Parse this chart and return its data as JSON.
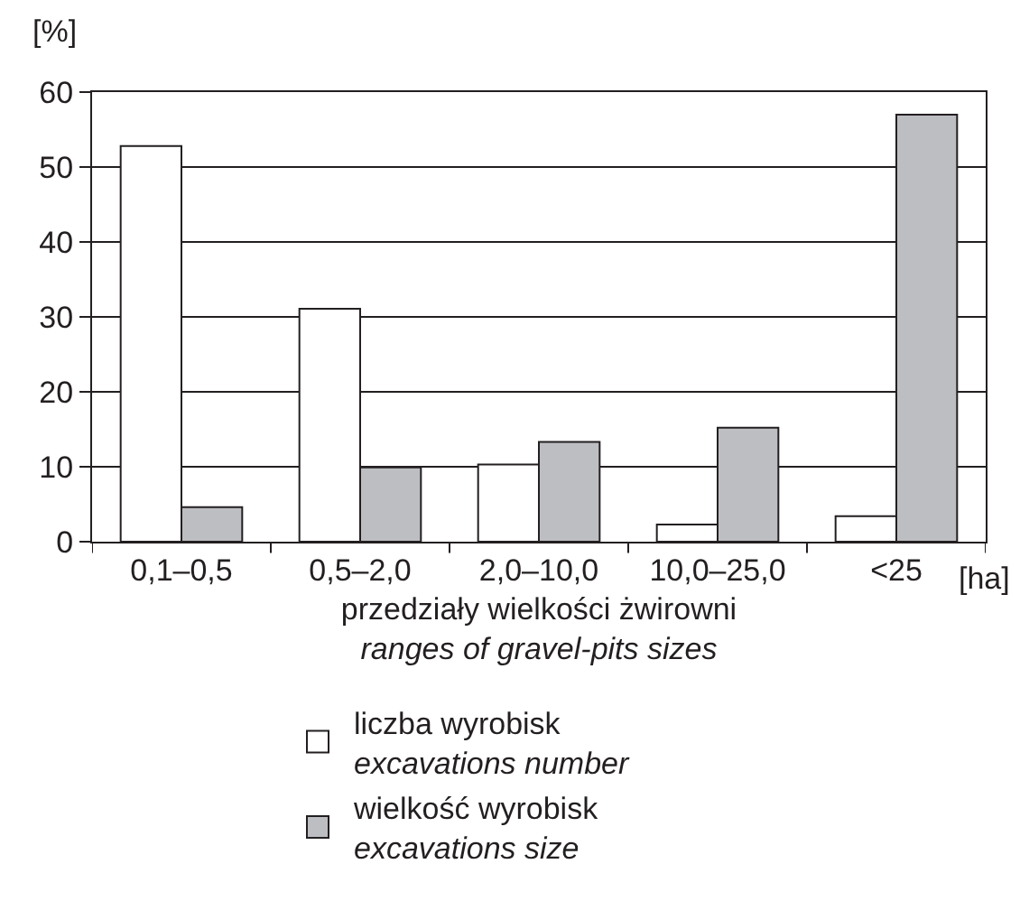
{
  "chart_data": {
    "type": "bar",
    "ylabel": "[%]",
    "xlabel": "przedziały wielkości żwirowni\nranges of gravel-pits sizes",
    "categories": [
      "0,1–0,5",
      "0,5–2,0",
      "2,0–10,0",
      "10,0–25,0",
      "<25"
    ],
    "series": [
      {
        "name": "liczba wyrobisk\nexcavations number",
        "color": "#ffffff",
        "values": [
          52.8,
          31.1,
          10.3,
          2.3,
          3.4
        ]
      },
      {
        "name": "wielkość wyrobisk\nexcavations size",
        "color": "#bdbec2",
        "values": [
          4.6,
          9.9,
          13.3,
          15.2,
          57.0
        ]
      }
    ],
    "annotations": [
      "[ha]"
    ],
    "ylim": [
      0,
      60
    ],
    "yticks": [
      0,
      10,
      20,
      30,
      40,
      50,
      60
    ],
    "grid": "y",
    "legend": "bottom"
  }
}
